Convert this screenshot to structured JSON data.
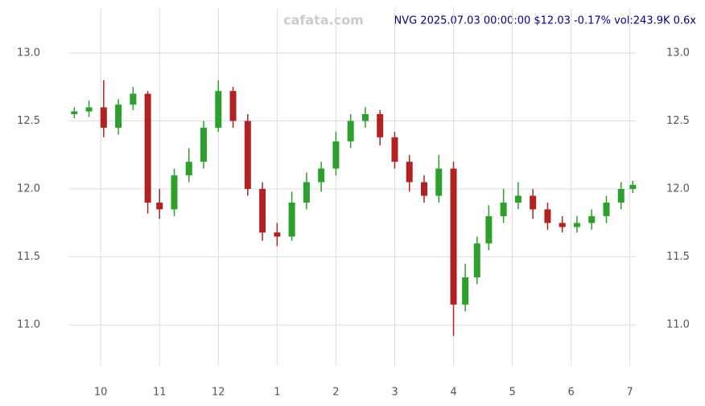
{
  "chart_data": {
    "type": "candlestick",
    "title": "NVG 2025.07.03 00:00:00 $12.03 -0.17% vol:243.9K 0.6x",
    "watermark": "cafata.com",
    "x": [
      -0.45,
      -0.2,
      0.05,
      0.3,
      0.55,
      0.8,
      1.0,
      1.25,
      1.5,
      1.75,
      2.0,
      2.25,
      2.5,
      2.75,
      3.0,
      3.25,
      3.5,
      3.75,
      4.0,
      4.25,
      4.5,
      4.75,
      5.0,
      5.25,
      5.5,
      5.75,
      6.0,
      6.2,
      6.4,
      6.6,
      6.85,
      7.1,
      7.35,
      7.6,
      7.85,
      8.1,
      8.35,
      8.6,
      8.85,
      9.05
    ],
    "open": [
      12.55,
      12.57,
      12.6,
      12.45,
      12.62,
      12.7,
      11.9,
      11.85,
      12.1,
      12.2,
      12.45,
      12.72,
      12.5,
      12.0,
      11.68,
      11.65,
      11.9,
      12.05,
      12.15,
      12.35,
      12.5,
      12.55,
      12.38,
      12.2,
      12.05,
      11.95,
      12.15,
      11.15,
      11.35,
      11.6,
      11.8,
      11.9,
      11.95,
      11.85,
      11.75,
      11.72,
      11.75,
      11.8,
      11.9,
      12.0
    ],
    "high": [
      12.6,
      12.65,
      12.8,
      12.66,
      12.75,
      12.72,
      12.0,
      12.15,
      12.3,
      12.5,
      12.8,
      12.75,
      12.55,
      12.05,
      11.75,
      11.98,
      12.12,
      12.2,
      12.42,
      12.55,
      12.6,
      12.58,
      12.42,
      12.25,
      12.1,
      12.25,
      12.2,
      11.45,
      11.65,
      11.88,
      12.0,
      12.05,
      12.0,
      11.9,
      11.8,
      11.8,
      11.85,
      11.95,
      12.05,
      12.06
    ],
    "low": [
      12.52,
      12.53,
      12.38,
      12.4,
      12.58,
      11.82,
      11.78,
      11.8,
      12.05,
      12.15,
      12.42,
      12.45,
      11.95,
      11.62,
      11.58,
      11.62,
      11.85,
      11.98,
      12.1,
      12.3,
      12.45,
      12.32,
      12.15,
      11.98,
      11.9,
      11.9,
      10.92,
      11.1,
      11.3,
      11.55,
      11.75,
      11.85,
      11.78,
      11.7,
      11.68,
      11.68,
      11.7,
      11.75,
      11.85,
      11.97
    ],
    "close": [
      12.57,
      12.6,
      12.45,
      12.62,
      12.7,
      11.9,
      11.85,
      12.1,
      12.2,
      12.45,
      12.72,
      12.5,
      12.0,
      11.68,
      11.65,
      11.9,
      12.05,
      12.15,
      12.35,
      12.5,
      12.55,
      12.38,
      12.2,
      12.05,
      11.95,
      12.15,
      11.15,
      11.35,
      11.6,
      11.8,
      11.9,
      11.95,
      11.85,
      11.75,
      11.72,
      11.75,
      11.8,
      11.9,
      12.0,
      12.03
    ],
    "up_color": "#2ca02c",
    "down_color": "#b22222",
    "xlim": [
      -0.55,
      9.1
    ],
    "xticks": [
      {
        "value": 0,
        "label": "10"
      },
      {
        "value": 1,
        "label": "11"
      },
      {
        "value": 2,
        "label": "12"
      },
      {
        "value": 3,
        "label": "1"
      },
      {
        "value": 4,
        "label": "2"
      },
      {
        "value": 5,
        "label": "3"
      },
      {
        "value": 6,
        "label": "4"
      },
      {
        "value": 7,
        "label": "5"
      },
      {
        "value": 8,
        "label": "6"
      },
      {
        "value": 9,
        "label": "7"
      }
    ],
    "ylim": [
      10.7,
      13.33
    ],
    "yticks": [
      {
        "value": 11,
        "label": "11.0"
      },
      {
        "value": 11.5,
        "label": "11.5"
      },
      {
        "value": 12,
        "label": "12.0"
      },
      {
        "value": 12.5,
        "label": "12.5"
      },
      {
        "value": 13,
        "label": "13.0"
      }
    ],
    "grid": true
  }
}
